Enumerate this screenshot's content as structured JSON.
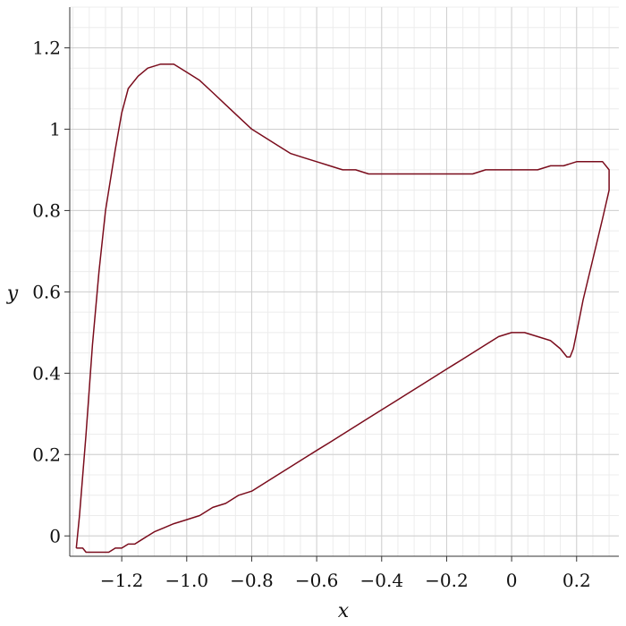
{
  "chart_data": {
    "type": "line",
    "title": "",
    "xlabel": "x",
    "ylabel": "y",
    "xlim": [
      -1.36,
      0.33
    ],
    "ylim": [
      -0.05,
      1.3
    ],
    "grid": true,
    "minor_grid": true,
    "legend": "none",
    "line_color": "#7a0c1c",
    "x_ticks": [
      {
        "value": -1.2,
        "label": "−1.2"
      },
      {
        "value": -1.0,
        "label": "−1.0"
      },
      {
        "value": -0.8,
        "label": "−0.8"
      },
      {
        "value": -0.6,
        "label": "−0.6"
      },
      {
        "value": -0.4,
        "label": "−0.4"
      },
      {
        "value": -0.2,
        "label": "−0.2"
      },
      {
        "value": 0.0,
        "label": "0"
      },
      {
        "value": 0.2,
        "label": "0.2"
      }
    ],
    "y_ticks": [
      {
        "value": 0.0,
        "label": "0"
      },
      {
        "value": 0.2,
        "label": "0.2"
      },
      {
        "value": 0.4,
        "label": "0.4"
      },
      {
        "value": 0.6,
        "label": "0.6"
      },
      {
        "value": 0.8,
        "label": "0.8"
      },
      {
        "value": 1.0,
        "label": "1"
      },
      {
        "value": 1.2,
        "label": "1.2"
      }
    ],
    "series": [
      {
        "x": [
          -1.34,
          -1.33,
          -1.31,
          -1.29,
          -1.27,
          -1.25,
          -1.22,
          -1.2,
          -1.18,
          -1.15,
          -1.12,
          -1.08,
          -1.04,
          -1.0,
          -0.96,
          -0.92,
          -0.88,
          -0.84,
          -0.8,
          -0.76,
          -0.72,
          -0.68,
          -0.64,
          -0.6,
          -0.56,
          -0.52,
          -0.48,
          -0.44,
          -0.4,
          -0.36,
          -0.32,
          -0.28,
          -0.24,
          -0.2,
          -0.16,
          -0.12,
          -0.08,
          -0.04,
          0.0,
          0.04,
          0.08,
          0.12,
          0.16,
          0.2,
          0.24,
          0.28,
          0.3,
          0.3,
          0.28,
          0.25,
          0.22,
          0.2,
          0.19,
          0.18,
          0.17,
          0.15,
          0.12,
          0.08,
          0.04,
          0.0,
          -0.04,
          -0.08,
          -0.12,
          -0.16,
          -0.2,
          -0.24,
          -0.28,
          -0.32,
          -0.36,
          -0.4,
          -0.44,
          -0.48,
          -0.52,
          -0.56,
          -0.6,
          -0.64,
          -0.68,
          -0.72,
          -0.76,
          -0.8,
          -0.84,
          -0.88,
          -0.92,
          -0.96,
          -1.0,
          -1.04,
          -1.07,
          -1.1,
          -1.12,
          -1.14,
          -1.16,
          -1.18,
          -1.2,
          -1.22,
          -1.24,
          -1.26,
          -1.28,
          -1.3,
          -1.31,
          -1.32,
          -1.33,
          -1.34
        ],
        "y": [
          -0.03,
          0.05,
          0.25,
          0.47,
          0.65,
          0.8,
          0.95,
          1.04,
          1.1,
          1.13,
          1.15,
          1.16,
          1.16,
          1.14,
          1.12,
          1.09,
          1.06,
          1.03,
          1.0,
          0.98,
          0.96,
          0.94,
          0.93,
          0.92,
          0.91,
          0.9,
          0.9,
          0.89,
          0.89,
          0.89,
          0.89,
          0.89,
          0.89,
          0.89,
          0.89,
          0.89,
          0.9,
          0.9,
          0.9,
          0.9,
          0.9,
          0.91,
          0.91,
          0.92,
          0.92,
          0.92,
          0.9,
          0.85,
          0.78,
          0.68,
          0.58,
          0.5,
          0.46,
          0.44,
          0.44,
          0.46,
          0.48,
          0.49,
          0.5,
          0.5,
          0.49,
          0.47,
          0.45,
          0.43,
          0.41,
          0.39,
          0.37,
          0.35,
          0.33,
          0.31,
          0.29,
          0.27,
          0.25,
          0.23,
          0.21,
          0.19,
          0.17,
          0.15,
          0.13,
          0.11,
          0.1,
          0.08,
          0.07,
          0.05,
          0.04,
          0.03,
          0.02,
          0.01,
          0.0,
          -0.01,
          -0.02,
          -0.02,
          -0.03,
          -0.03,
          -0.04,
          -0.04,
          -0.04,
          -0.04,
          -0.04,
          -0.03,
          -0.03,
          -0.03
        ]
      }
    ]
  }
}
